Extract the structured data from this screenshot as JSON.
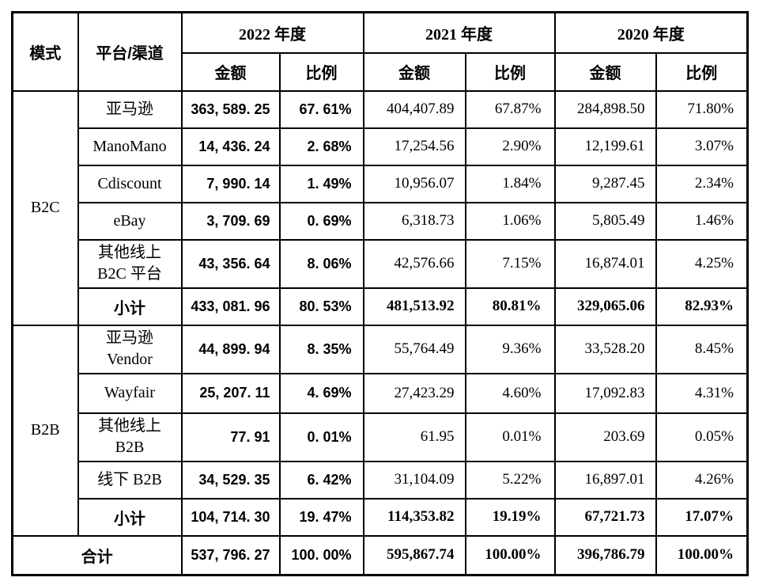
{
  "colors": {
    "border": "#000000",
    "background": "#ffffff",
    "text": "#000000"
  },
  "header": {
    "mode": "模式",
    "platform": "平台/渠道",
    "year_2022": "2022 年度",
    "year_2021": "2021 年度",
    "year_2020": "2020 年度",
    "amount": "金额",
    "ratio": "比例"
  },
  "groups": [
    {
      "mode": "B2C",
      "rows": [
        {
          "platform": "亚马逊",
          "a2022": "363, 589. 25",
          "r2022": "67. 61%",
          "a2021": "404,407.89",
          "r2021": "67.87%",
          "a2020": "284,898.50",
          "r2020": "71.80%"
        },
        {
          "platform": "ManoMano",
          "a2022": "14, 436. 24",
          "r2022": "2. 68%",
          "a2021": "17,254.56",
          "r2021": "2.90%",
          "a2020": "12,199.61",
          "r2020": "3.07%"
        },
        {
          "platform": "Cdiscount",
          "a2022": "7, 990. 14",
          "r2022": "1. 49%",
          "a2021": "10,956.07",
          "r2021": "1.84%",
          "a2020": "9,287.45",
          "r2020": "2.34%"
        },
        {
          "platform": "eBay",
          "a2022": "3, 709. 69",
          "r2022": "0. 69%",
          "a2021": "6,318.73",
          "r2021": "1.06%",
          "a2020": "5,805.49",
          "r2020": "1.46%"
        },
        {
          "platform": "其他线上\nB2C 平台",
          "a2022": "43, 356. 64",
          "r2022": "8. 06%",
          "a2021": "42,576.66",
          "r2021": "7.15%",
          "a2020": "16,874.01",
          "r2020": "4.25%"
        },
        {
          "platform": "小计",
          "a2022": "433, 081. 96",
          "r2022": "80. 53%",
          "a2021": "481,513.92",
          "r2021": "80.81%",
          "a2020": "329,065.06",
          "r2020": "82.93%"
        }
      ]
    },
    {
      "mode": "B2B",
      "rows": [
        {
          "platform": "亚马逊\nVendor",
          "a2022": "44, 899. 94",
          "r2022": "8. 35%",
          "a2021": "55,764.49",
          "r2021": "9.36%",
          "a2020": "33,528.20",
          "r2020": "8.45%"
        },
        {
          "platform": "Wayfair",
          "a2022": "25, 207. 11",
          "r2022": "4. 69%",
          "a2021": "27,423.29",
          "r2021": "4.60%",
          "a2020": "17,092.83",
          "r2020": "4.31%"
        },
        {
          "platform": "其他线上\nB2B",
          "a2022": "77. 91",
          "r2022": "0. 01%",
          "a2021": "61.95",
          "r2021": "0.01%",
          "a2020": "203.69",
          "r2020": "0.05%"
        },
        {
          "platform": "线下 B2B",
          "a2022": "34, 529. 35",
          "r2022": "6. 42%",
          "a2021": "31,104.09",
          "r2021": "5.22%",
          "a2020": "16,897.01",
          "r2020": "4.26%"
        },
        {
          "platform": "小计",
          "a2022": "104, 714. 30",
          "r2022": "19. 47%",
          "a2021": "114,353.82",
          "r2021": "19.19%",
          "a2020": "67,721.73",
          "r2020": "17.07%"
        }
      ]
    }
  ],
  "total": {
    "label": "合计",
    "a2022": "537, 796. 27",
    "r2022": "100. 00%",
    "a2021": "595,867.74",
    "r2021": "100.00%",
    "a2020": "396,786.79",
    "r2020": "100.00%"
  }
}
